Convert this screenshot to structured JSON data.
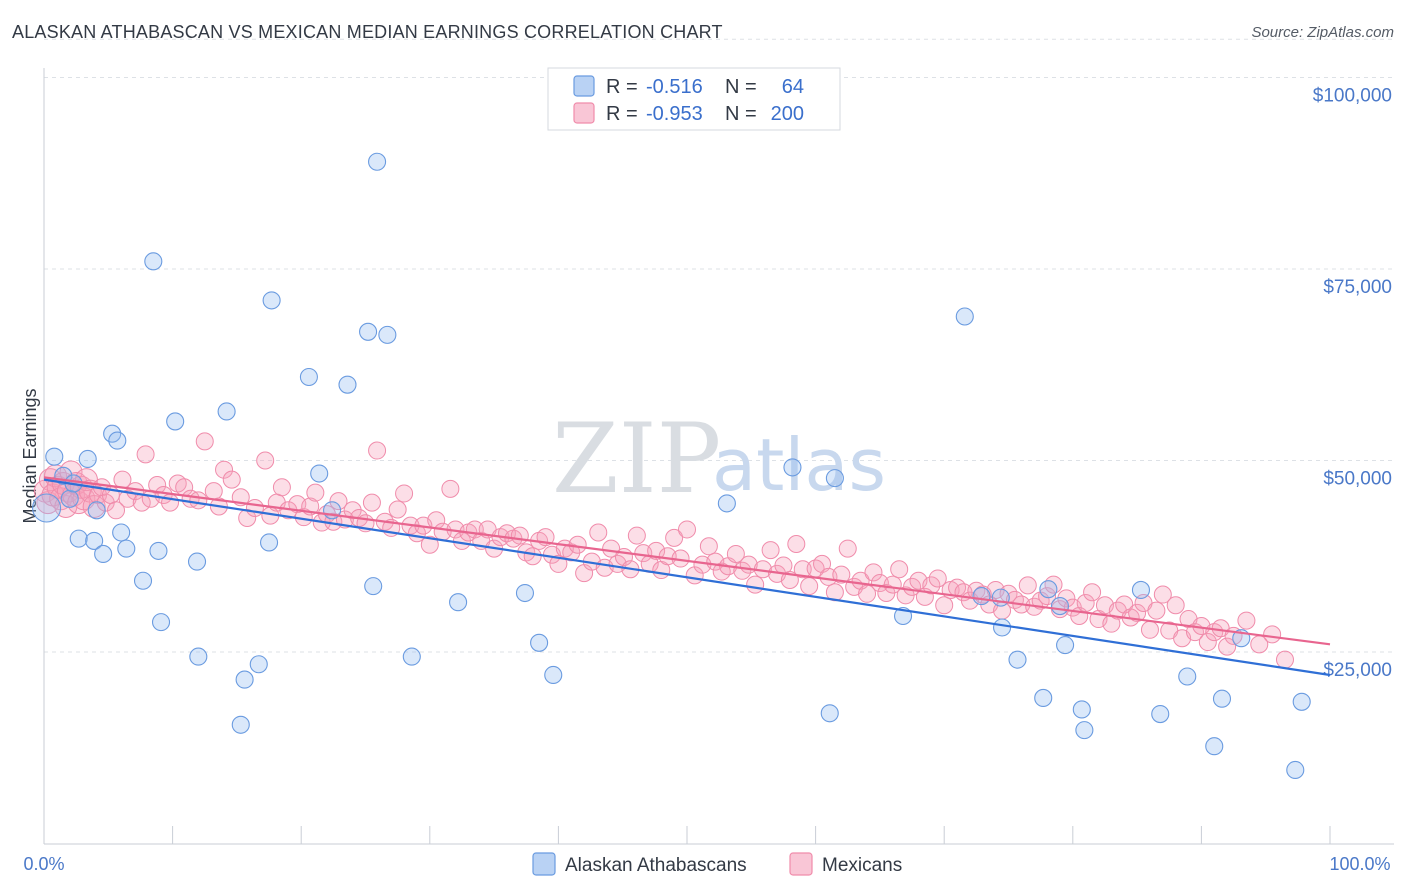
{
  "title": "ALASKAN ATHABASCAN VS MEXICAN MEDIAN EARNINGS CORRELATION CHART",
  "source": "Source: ZipAtlas.com",
  "watermark": {
    "zip": "ZIP",
    "atlas": "atlas"
  },
  "legend": {
    "rows": [
      {
        "r_label": "R =",
        "r_value": "-0.516",
        "n_label": "N =",
        "n_value": "64"
      },
      {
        "r_label": "R =",
        "r_value": "-0.953",
        "n_label": "N =",
        "n_value": "200"
      }
    ]
  },
  "chart_data": {
    "type": "scatter",
    "title": "ALASKAN ATHABASCAN VS MEXICAN MEDIAN EARNINGS CORRELATION CHART",
    "xlabel": "",
    "ylabel": "Median Earnings",
    "xlim": [
      0,
      100
    ],
    "ylim": [
      0,
      105000
    ],
    "x_tick_labels": [
      "0.0%",
      "100.0%"
    ],
    "y_ticks": [
      25000,
      50000,
      75000,
      100000
    ],
    "y_tick_labels": [
      "$25,000",
      "$50,000",
      "$75,000",
      "$100,000"
    ],
    "grid": "horizontal dashed",
    "colors": {
      "athabascan": "#6a9be0",
      "mexican": "#f08cab",
      "athabascan_line": "#2f6fd6",
      "mexican_line": "#e8658f"
    },
    "series": [
      {
        "name": "Alaskan Athabascans",
        "R": -0.516,
        "N": 64,
        "trend": [
          [
            0,
            47500
          ],
          [
            100,
            22000
          ]
        ],
        "points": [
          [
            0.2,
            43800
          ],
          [
            0.8,
            50500
          ],
          [
            1.5,
            48000
          ],
          [
            2.0,
            45000
          ],
          [
            2.3,
            47000
          ],
          [
            2.7,
            39800
          ],
          [
            3.4,
            50200
          ],
          [
            3.9,
            39500
          ],
          [
            4.1,
            43500
          ],
          [
            4.6,
            37800
          ],
          [
            5.3,
            53500
          ],
          [
            5.7,
            52600
          ],
          [
            6.0,
            40600
          ],
          [
            6.4,
            38500
          ],
          [
            7.7,
            34300
          ],
          [
            8.5,
            76000
          ],
          [
            8.9,
            38200
          ],
          [
            9.1,
            28900
          ],
          [
            10.2,
            55100
          ],
          [
            11.9,
            36800
          ],
          [
            12.0,
            24400
          ],
          [
            14.2,
            56400
          ],
          [
            15.3,
            15500
          ],
          [
            15.6,
            21400
          ],
          [
            16.7,
            23400
          ],
          [
            17.5,
            39300
          ],
          [
            17.7,
            70900
          ],
          [
            20.6,
            60900
          ],
          [
            21.4,
            48300
          ],
          [
            22.4,
            43500
          ],
          [
            23.6,
            59900
          ],
          [
            25.2,
            66800
          ],
          [
            25.6,
            33600
          ],
          [
            25.9,
            89000
          ],
          [
            26.7,
            66400
          ],
          [
            28.6,
            24400
          ],
          [
            32.2,
            31500
          ],
          [
            37.4,
            32700
          ],
          [
            38.5,
            26200
          ],
          [
            39.6,
            22000
          ],
          [
            53.1,
            44400
          ],
          [
            58.2,
            49100
          ],
          [
            61.1,
            17000
          ],
          [
            61.5,
            47700
          ],
          [
            66.8,
            29700
          ],
          [
            71.6,
            68800
          ],
          [
            72.9,
            32300
          ],
          [
            74.4,
            32100
          ],
          [
            74.5,
            28200
          ],
          [
            75.7,
            24000
          ],
          [
            77.7,
            19000
          ],
          [
            78.1,
            33200
          ],
          [
            79.0,
            31000
          ],
          [
            79.4,
            25900
          ],
          [
            80.7,
            17500
          ],
          [
            80.9,
            14800
          ],
          [
            85.3,
            33100
          ],
          [
            86.8,
            16900
          ],
          [
            88.9,
            21800
          ],
          [
            91.0,
            12700
          ],
          [
            91.6,
            18900
          ],
          [
            93.1,
            26800
          ],
          [
            97.3,
            9600
          ],
          [
            97.8,
            18500
          ]
        ]
      },
      {
        "name": "Mexicans",
        "R": -0.953,
        "N": 200,
        "trend": [
          [
            0,
            47800
          ],
          [
            100,
            26000
          ]
        ],
        "points": [
          [
            0.1,
            46000
          ],
          [
            0.3,
            44500
          ],
          [
            0.5,
            47500
          ],
          [
            0.7,
            45500
          ],
          [
            0.9,
            48000
          ],
          [
            1.1,
            46500
          ],
          [
            1.3,
            45000
          ],
          [
            1.5,
            47000
          ],
          [
            1.7,
            44000
          ],
          [
            1.9,
            46000
          ],
          [
            2.1,
            48500
          ],
          [
            2.3,
            45500
          ],
          [
            2.5,
            47000
          ],
          [
            2.7,
            44500
          ],
          [
            2.9,
            46500
          ],
          [
            3.1,
            45000
          ],
          [
            3.3,
            47500
          ],
          [
            3.6,
            46000
          ],
          [
            3.9,
            44000
          ],
          [
            4.2,
            45500
          ],
          [
            4.5,
            46500
          ],
          [
            4.8,
            44500
          ],
          [
            5.2,
            45500
          ],
          [
            5.6,
            43500
          ],
          [
            6.1,
            47500
          ],
          [
            6.5,
            45000
          ],
          [
            7.1,
            46000
          ],
          [
            7.6,
            44500
          ],
          [
            7.9,
            50800
          ],
          [
            8.3,
            45000
          ],
          [
            8.8,
            46800
          ],
          [
            9.3,
            45500
          ],
          [
            9.8,
            44500
          ],
          [
            10.4,
            47000
          ],
          [
            10.9,
            46500
          ],
          [
            11.4,
            45000
          ],
          [
            12.0,
            44800
          ],
          [
            12.5,
            52500
          ],
          [
            13.2,
            46000
          ],
          [
            13.6,
            44000
          ],
          [
            14.0,
            48800
          ],
          [
            14.6,
            47500
          ],
          [
            15.3,
            45200
          ],
          [
            15.8,
            42500
          ],
          [
            16.4,
            43800
          ],
          [
            17.2,
            50000
          ],
          [
            17.6,
            42800
          ],
          [
            18.1,
            44500
          ],
          [
            18.5,
            46500
          ],
          [
            19.0,
            43500
          ],
          [
            19.7,
            44300
          ],
          [
            20.2,
            42600
          ],
          [
            20.7,
            44000
          ],
          [
            21.1,
            45800
          ],
          [
            21.6,
            41900
          ],
          [
            22.0,
            43000
          ],
          [
            22.5,
            42000
          ],
          [
            22.9,
            44700
          ],
          [
            23.4,
            42300
          ],
          [
            24.0,
            43500
          ],
          [
            24.5,
            42500
          ],
          [
            25.0,
            41800
          ],
          [
            25.5,
            44500
          ],
          [
            25.9,
            51300
          ],
          [
            26.5,
            42000
          ],
          [
            27.0,
            41200
          ],
          [
            27.5,
            43600
          ],
          [
            28.0,
            45700
          ],
          [
            28.5,
            41500
          ],
          [
            29.0,
            40500
          ],
          [
            29.5,
            41500
          ],
          [
            30.0,
            39000
          ],
          [
            30.5,
            42200
          ],
          [
            31.0,
            40700
          ],
          [
            31.6,
            46300
          ],
          [
            32.0,
            41000
          ],
          [
            32.5,
            39500
          ],
          [
            33.0,
            40600
          ],
          [
            33.5,
            41000
          ],
          [
            34.0,
            39500
          ],
          [
            34.5,
            41000
          ],
          [
            35.0,
            38500
          ],
          [
            35.5,
            40000
          ],
          [
            36.0,
            40500
          ],
          [
            36.5,
            39800
          ],
          [
            37.0,
            40200
          ],
          [
            37.5,
            38000
          ],
          [
            38.0,
            37500
          ],
          [
            38.5,
            39500
          ],
          [
            39.0,
            40000
          ],
          [
            39.5,
            37700
          ],
          [
            40.0,
            36500
          ],
          [
            40.5,
            38500
          ],
          [
            41.0,
            38000
          ],
          [
            41.5,
            39000
          ],
          [
            42.0,
            35300
          ],
          [
            42.6,
            36800
          ],
          [
            43.1,
            40600
          ],
          [
            43.6,
            36000
          ],
          [
            44.1,
            38500
          ],
          [
            44.6,
            36500
          ],
          [
            45.1,
            37400
          ],
          [
            45.6,
            35800
          ],
          [
            46.1,
            40200
          ],
          [
            46.6,
            37900
          ],
          [
            47.1,
            36500
          ],
          [
            47.6,
            38200
          ],
          [
            48.0,
            35700
          ],
          [
            48.5,
            37500
          ],
          [
            49.0,
            39900
          ],
          [
            49.5,
            37200
          ],
          [
            50.0,
            41000
          ],
          [
            50.6,
            35000
          ],
          [
            51.2,
            36400
          ],
          [
            51.7,
            38800
          ],
          [
            52.2,
            36800
          ],
          [
            52.7,
            35500
          ],
          [
            53.2,
            36200
          ],
          [
            53.8,
            37800
          ],
          [
            54.3,
            35600
          ],
          [
            54.8,
            36400
          ],
          [
            55.3,
            33800
          ],
          [
            55.9,
            35800
          ],
          [
            56.5,
            38300
          ],
          [
            57.0,
            35200
          ],
          [
            57.5,
            36300
          ],
          [
            58.0,
            34400
          ],
          [
            58.5,
            39100
          ],
          [
            59.0,
            35800
          ],
          [
            59.5,
            33600
          ],
          [
            60.0,
            35900
          ],
          [
            60.5,
            36500
          ],
          [
            61.0,
            34800
          ],
          [
            61.5,
            32800
          ],
          [
            62.0,
            35100
          ],
          [
            62.5,
            38500
          ],
          [
            63.0,
            33500
          ],
          [
            63.5,
            34300
          ],
          [
            64.0,
            32600
          ],
          [
            64.5,
            35400
          ],
          [
            65.0,
            34000
          ],
          [
            65.5,
            32700
          ],
          [
            66.0,
            33800
          ],
          [
            66.5,
            35800
          ],
          [
            67.0,
            32400
          ],
          [
            67.5,
            33500
          ],
          [
            68.0,
            34300
          ],
          [
            68.5,
            32200
          ],
          [
            69.0,
            33700
          ],
          [
            69.5,
            34600
          ],
          [
            70.0,
            31100
          ],
          [
            70.5,
            33100
          ],
          [
            71.0,
            33400
          ],
          [
            71.5,
            32800
          ],
          [
            72.0,
            31700
          ],
          [
            72.5,
            33000
          ],
          [
            73.0,
            32500
          ],
          [
            73.5,
            31200
          ],
          [
            74.0,
            33100
          ],
          [
            74.5,
            30400
          ],
          [
            75.0,
            32600
          ],
          [
            75.5,
            31800
          ],
          [
            76.0,
            31200
          ],
          [
            76.5,
            33700
          ],
          [
            77.0,
            30900
          ],
          [
            77.5,
            31700
          ],
          [
            78.0,
            32300
          ],
          [
            78.5,
            33800
          ],
          [
            79.0,
            30600
          ],
          [
            79.5,
            32000
          ],
          [
            80.0,
            30800
          ],
          [
            80.5,
            29700
          ],
          [
            81.0,
            31400
          ],
          [
            81.5,
            32800
          ],
          [
            82.0,
            29300
          ],
          [
            82.5,
            31100
          ],
          [
            83.0,
            28700
          ],
          [
            83.5,
            30400
          ],
          [
            84.0,
            31200
          ],
          [
            84.5,
            29500
          ],
          [
            85.0,
            30100
          ],
          [
            85.5,
            31400
          ],
          [
            86.0,
            27900
          ],
          [
            86.5,
            30400
          ],
          [
            87.0,
            32500
          ],
          [
            87.5,
            27800
          ],
          [
            88.0,
            31100
          ],
          [
            88.5,
            26800
          ],
          [
            89.0,
            29300
          ],
          [
            89.5,
            27600
          ],
          [
            90.0,
            28400
          ],
          [
            90.5,
            26300
          ],
          [
            91.0,
            27600
          ],
          [
            91.5,
            28100
          ],
          [
            92.0,
            25700
          ],
          [
            92.5,
            27100
          ],
          [
            93.5,
            29100
          ],
          [
            94.5,
            26000
          ],
          [
            95.5,
            27300
          ],
          [
            96.5,
            24000
          ]
        ]
      }
    ]
  },
  "bottom_legend": [
    {
      "label": "Alaskan Athabascans"
    },
    {
      "label": "Mexicans"
    }
  ]
}
